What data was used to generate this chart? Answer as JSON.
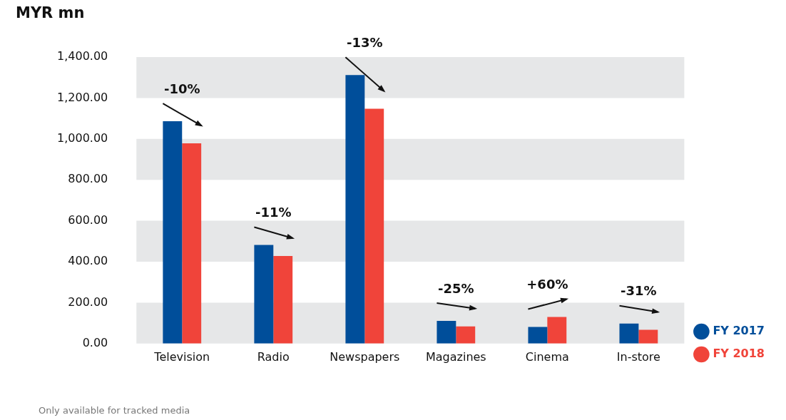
{
  "chart_data": {
    "type": "bar",
    "ylabel": "MYR mn",
    "categories": [
      "Television",
      "Radio",
      "Newspapers",
      "Magazines",
      "Cinema",
      "In-store"
    ],
    "series": [
      {
        "name": "FY 2017",
        "color": "#004e9a",
        "values": [
          1086,
          482,
          1312,
          111,
          81,
          98
        ]
      },
      {
        "name": "FY 2018",
        "color": "#f0443a",
        "values": [
          978,
          428,
          1147,
          84,
          130,
          67
        ]
      }
    ],
    "ylim": [
      0,
      1400
    ],
    "yticks": [
      {
        "value": 0,
        "label": "0.00"
      },
      {
        "value": 200,
        "label": "200.00"
      },
      {
        "value": 400,
        "label": "400.00"
      },
      {
        "value": 600,
        "label": "600.00"
      },
      {
        "value": 800,
        "label": "800.00"
      },
      {
        "value": 1000,
        "label": "1,000.00"
      },
      {
        "value": 1200,
        "label": "1,200.00"
      },
      {
        "value": 1400,
        "label": "1,400.00"
      }
    ],
    "bands": [
      {
        "axis": "y",
        "from": 0,
        "to": 200,
        "color": "#e6e7e8"
      },
      {
        "axis": "y",
        "from": 400,
        "to": 600,
        "color": "#e6e7e8"
      },
      {
        "axis": "y",
        "from": 800,
        "to": 1000,
        "color": "#e6e7e8"
      },
      {
        "axis": "y",
        "from": 1200,
        "to": 1400,
        "color": "#e6e7e8"
      }
    ],
    "annotations": [
      "-10%",
      "-11%",
      "-13%",
      "-25%",
      "+60%",
      "-31%",
      "Only available for tracked media"
    ],
    "grid": false,
    "legend": "bottom right"
  }
}
